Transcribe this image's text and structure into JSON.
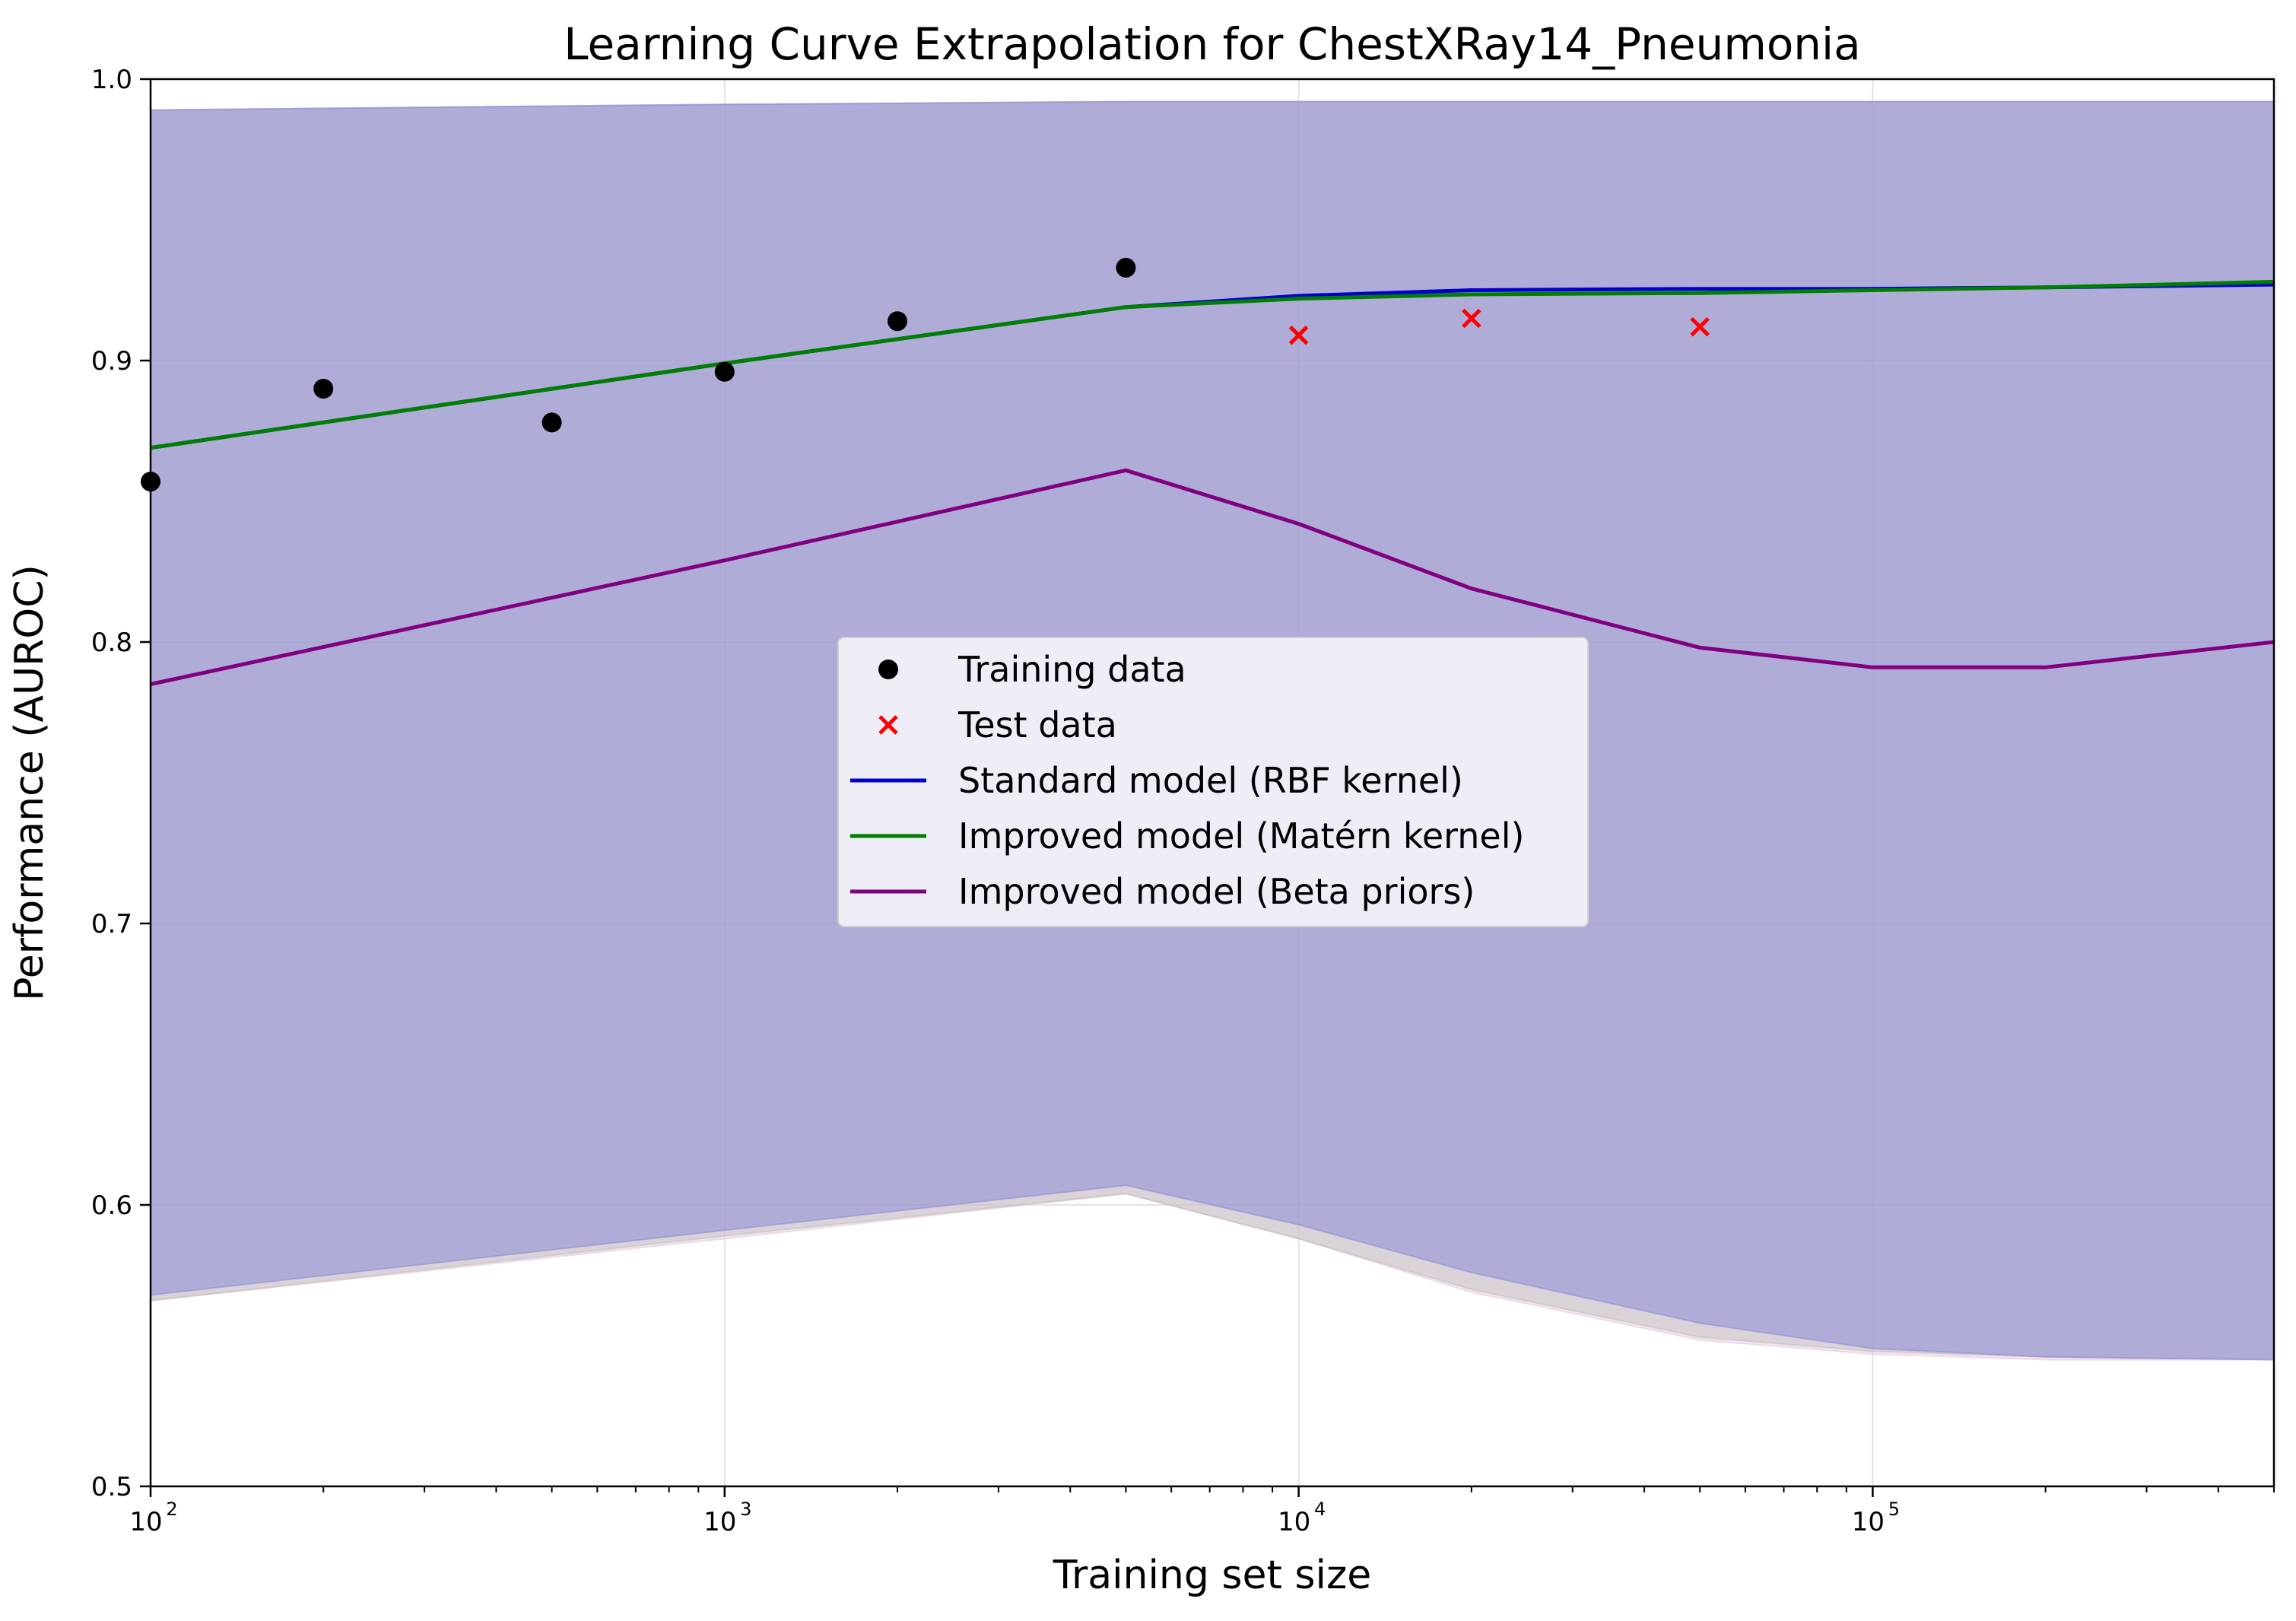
{
  "chart_data": {
    "type": "line",
    "title": "Learning Curve Extrapolation for ChestXRay14_Pneumonia",
    "xlabel": "Training set size",
    "ylabel": "Performance (AUROC)",
    "xscale": "log",
    "xlim": [
      100,
      500000
    ],
    "ylim": [
      0.5,
      1.0
    ],
    "grid": true,
    "legend_position": "center",
    "x_major_ticks": [
      {
        "value": 100,
        "base": "10",
        "exp": "2"
      },
      {
        "value": 1000,
        "base": "10",
        "exp": "3"
      },
      {
        "value": 10000,
        "base": "10",
        "exp": "4"
      },
      {
        "value": 100000,
        "base": "10",
        "exp": "5"
      }
    ],
    "y_ticks": [
      {
        "value": 0.5,
        "label": "0.5"
      },
      {
        "value": 0.6,
        "label": "0.6"
      },
      {
        "value": 0.7,
        "label": "0.7"
      },
      {
        "value": 0.8,
        "label": "0.8"
      },
      {
        "value": 0.9,
        "label": "0.9"
      },
      {
        "value": 1.0,
        "label": "1.0"
      }
    ],
    "series": [
      {
        "name": "Training data",
        "kind": "scatter",
        "marker": "circle",
        "color": "#000000",
        "points": [
          [
            100,
            0.857
          ],
          [
            200,
            0.89
          ],
          [
            500,
            0.878
          ],
          [
            1000,
            0.896
          ],
          [
            2000,
            0.914
          ],
          [
            5000,
            0.933
          ]
        ]
      },
      {
        "name": "Test data",
        "kind": "scatter",
        "marker": "x",
        "color": "#ff0000",
        "points": [
          [
            10000,
            0.909
          ],
          [
            20000,
            0.915
          ],
          [
            50000,
            0.912
          ]
        ]
      },
      {
        "name": "Standard model (RBF kernel)",
        "kind": "line",
        "color": "#0000cc",
        "points": [
          [
            100,
            0.869
          ],
          [
            1000,
            0.899
          ],
          [
            5000,
            0.919
          ],
          [
            10000,
            0.923
          ],
          [
            20000,
            0.925
          ],
          [
            50000,
            0.9255
          ],
          [
            100000,
            0.9255
          ],
          [
            200000,
            0.926
          ],
          [
            500000,
            0.927
          ]
        ],
        "band_color": "#e8c8e0",
        "band": [
          [
            100,
            0.566,
            0.989
          ],
          [
            1000,
            0.588,
            0.991
          ],
          [
            5000,
            0.604,
            0.992
          ],
          [
            10000,
            0.588,
            0.992
          ],
          [
            20000,
            0.569,
            0.992
          ],
          [
            50000,
            0.552,
            0.992
          ],
          [
            100000,
            0.547,
            0.992
          ],
          [
            200000,
            0.545,
            0.992
          ],
          [
            500000,
            0.545,
            0.992
          ]
        ]
      },
      {
        "name": "Improved model (Matérn kernel)",
        "kind": "line",
        "color": "#007f00",
        "points": [
          [
            100,
            0.869
          ],
          [
            1000,
            0.899
          ],
          [
            5000,
            0.919
          ],
          [
            10000,
            0.922
          ],
          [
            20000,
            0.9235
          ],
          [
            50000,
            0.924
          ],
          [
            100000,
            0.925
          ],
          [
            200000,
            0.926
          ],
          [
            500000,
            0.928
          ]
        ],
        "band_color": "#c0c0c0",
        "band": [
          [
            100,
            0.566,
            0.989
          ],
          [
            1000,
            0.589,
            0.991
          ],
          [
            5000,
            0.604,
            0.992
          ],
          [
            10000,
            0.588,
            0.992
          ],
          [
            20000,
            0.57,
            0.992
          ],
          [
            50000,
            0.553,
            0.992
          ],
          [
            100000,
            0.548,
            0.992
          ],
          [
            200000,
            0.546,
            0.992
          ],
          [
            500000,
            0.545,
            0.992
          ]
        ]
      },
      {
        "name": "Improved model (Beta priors)",
        "kind": "line",
        "color": "#800080",
        "points": [
          [
            100,
            0.785
          ],
          [
            1000,
            0.829
          ],
          [
            5000,
            0.861
          ],
          [
            10000,
            0.842
          ],
          [
            20000,
            0.819
          ],
          [
            50000,
            0.798
          ],
          [
            100000,
            0.791
          ],
          [
            200000,
            0.791
          ],
          [
            500000,
            0.8
          ]
        ],
        "band_color": "#8c8cd8",
        "band": [
          [
            100,
            0.568,
            0.989
          ],
          [
            1000,
            0.591,
            0.991
          ],
          [
            5000,
            0.607,
            0.992
          ],
          [
            10000,
            0.593,
            0.992
          ],
          [
            20000,
            0.576,
            0.992
          ],
          [
            50000,
            0.558,
            0.992
          ],
          [
            100000,
            0.549,
            0.992
          ],
          [
            200000,
            0.546,
            0.992
          ],
          [
            500000,
            0.545,
            0.992
          ]
        ]
      }
    ]
  }
}
